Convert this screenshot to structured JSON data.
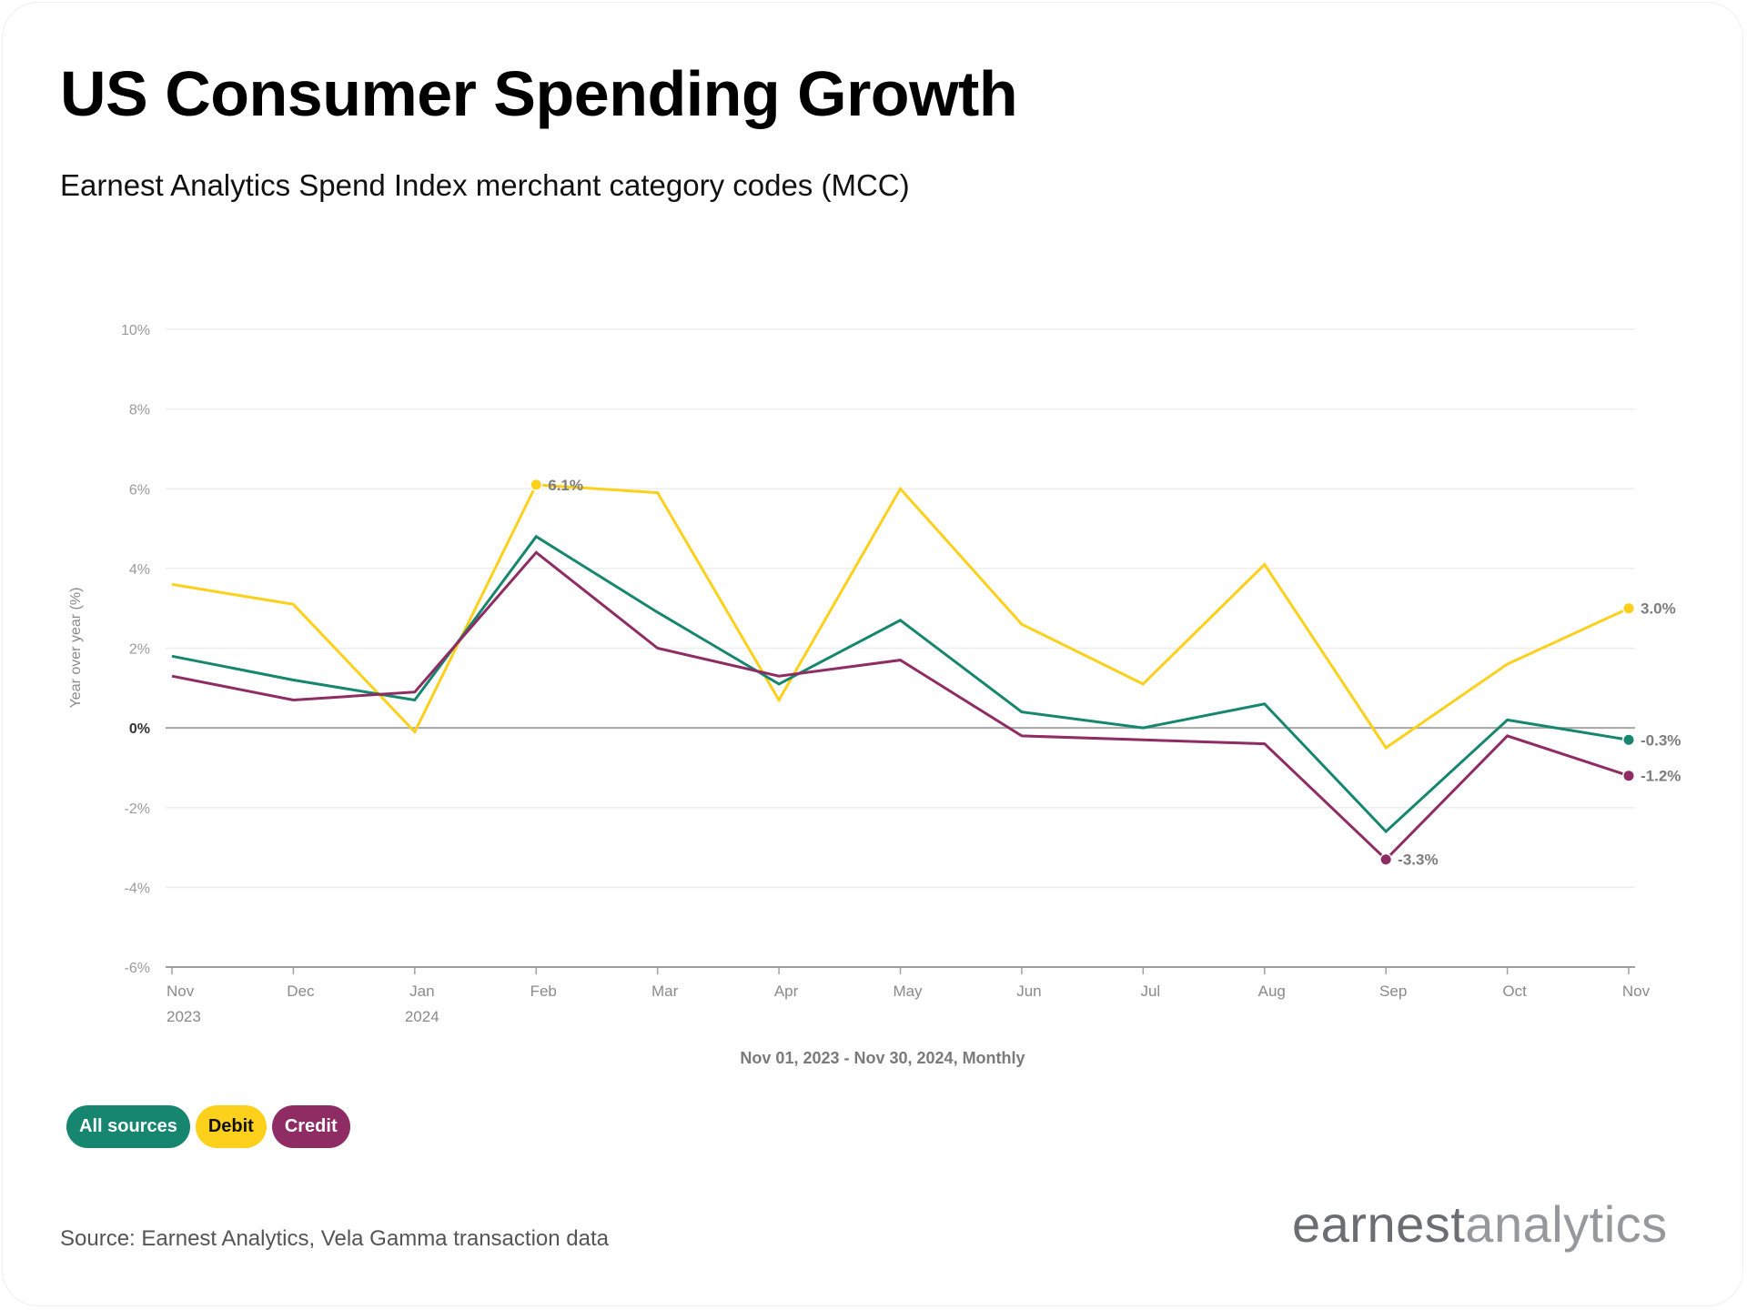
{
  "header": {
    "title": "US Consumer Spending Growth",
    "subtitle": "Earnest Analytics Spend Index merchant category codes (MCC)"
  },
  "legend": [
    {
      "label": "All sources",
      "color": "#16866F",
      "text_color": "#ffffff"
    },
    {
      "label": "Debit",
      "color": "#FDD01C",
      "text_color": "#111111"
    },
    {
      "label": "Credit",
      "color": "#8E2C63",
      "text_color": "#ffffff"
    }
  ],
  "footer": {
    "source": "Source: Earnest Analytics, Vela Gamma transaction data",
    "logo_part1": "earnest",
    "logo_part2": "analytics"
  },
  "chart_data": {
    "type": "line",
    "title": "US Consumer Spending Growth",
    "subtitle": "Earnest Analytics Spend Index merchant category codes (MCC)",
    "xlabel": "Nov 01, 2023 - Nov 30, 2024, Monthly",
    "ylabel": "Year over year (%)",
    "ylim": [
      -6,
      10
    ],
    "yticks": [
      10,
      8,
      6,
      4,
      2,
      0,
      -2,
      -4,
      -6
    ],
    "ytick_labels": [
      "10%",
      "8%",
      "6%",
      "4%",
      "2%",
      "0%",
      "-2%",
      "-4%",
      "-6%"
    ],
    "x": [
      "Nov",
      "Dec",
      "Jan",
      "Feb",
      "Mar",
      "Apr",
      "May",
      "Jun",
      "Jul",
      "Aug",
      "Sep",
      "Oct",
      "Nov"
    ],
    "x_sublabels": [
      "2023",
      "",
      "2024",
      "",
      "",
      "",
      "",
      "",
      "",
      "",
      "",
      "",
      ""
    ],
    "grid": true,
    "legend_position": "bottom-left",
    "series": [
      {
        "name": "Debit",
        "color": "#FDD01C",
        "values": [
          3.6,
          3.1,
          -0.1,
          6.1,
          5.9,
          0.7,
          6.0,
          2.6,
          1.1,
          4.1,
          -0.5,
          1.6,
          3.0
        ]
      },
      {
        "name": "All sources",
        "color": "#16866F",
        "values": [
          1.8,
          1.2,
          0.7,
          4.8,
          2.9,
          1.1,
          2.7,
          0.4,
          0.0,
          0.6,
          -2.6,
          0.2,
          -0.3
        ]
      },
      {
        "name": "Credit",
        "color": "#8E2C63",
        "values": [
          1.3,
          0.7,
          0.9,
          4.4,
          2.0,
          1.3,
          1.7,
          -0.2,
          -0.3,
          -0.4,
          -3.3,
          -0.2,
          -1.2
        ]
      }
    ],
    "annotations": [
      {
        "series": "Debit",
        "index": 3,
        "text": "6.1%"
      },
      {
        "series": "Credit",
        "index": 10,
        "text": "-3.3%"
      },
      {
        "series": "Debit",
        "index": 12,
        "text": "3.0%"
      },
      {
        "series": "All sources",
        "index": 12,
        "text": "-0.3%"
      },
      {
        "series": "Credit",
        "index": 12,
        "text": "-1.2%"
      }
    ]
  }
}
